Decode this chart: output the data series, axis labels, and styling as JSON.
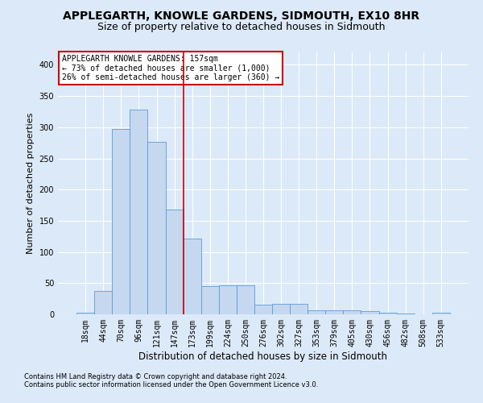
{
  "title": "APPLEGARTH, KNOWLE GARDENS, SIDMOUTH, EX10 8HR",
  "subtitle": "Size of property relative to detached houses in Sidmouth",
  "xlabel": "Distribution of detached houses by size in Sidmouth",
  "ylabel": "Number of detached properties",
  "bin_labels": [
    "18sqm",
    "44sqm",
    "70sqm",
    "96sqm",
    "121sqm",
    "147sqm",
    "173sqm",
    "199sqm",
    "224sqm",
    "250sqm",
    "276sqm",
    "302sqm",
    "327sqm",
    "353sqm",
    "379sqm",
    "405sqm",
    "430sqm",
    "456sqm",
    "482sqm",
    "508sqm",
    "533sqm"
  ],
  "bar_heights": [
    3,
    37,
    297,
    328,
    277,
    168,
    122,
    45,
    46,
    47,
    15,
    17,
    17,
    6,
    6,
    7,
    5,
    3,
    1,
    0,
    2
  ],
  "bar_color": "#c5d8f0",
  "bar_edge_color": "#5b9bd5",
  "vline_x": 5.5,
  "vline_color": "#cc0000",
  "annotation_text": "APPLEGARTH KNOWLE GARDENS: 157sqm\n← 73% of detached houses are smaller (1,000)\n26% of semi-detached houses are larger (360) →",
  "annotation_box_color": "#cc0000",
  "annotation_bg": "#ffffff",
  "footnote1": "Contains HM Land Registry data © Crown copyright and database right 2024.",
  "footnote2": "Contains public sector information licensed under the Open Government Licence v3.0.",
  "bg_color": "#dce9f8",
  "plot_bg_color": "#dce9f8",
  "grid_color": "#ffffff",
  "ylim": [
    0,
    420
  ],
  "yticks": [
    0,
    50,
    100,
    150,
    200,
    250,
    300,
    350,
    400
  ],
  "title_fontsize": 10,
  "subtitle_fontsize": 9,
  "ylabel_fontsize": 8,
  "xlabel_fontsize": 8.5,
  "tick_fontsize": 7,
  "annotation_fontsize": 7,
  "footnote_fontsize": 6
}
